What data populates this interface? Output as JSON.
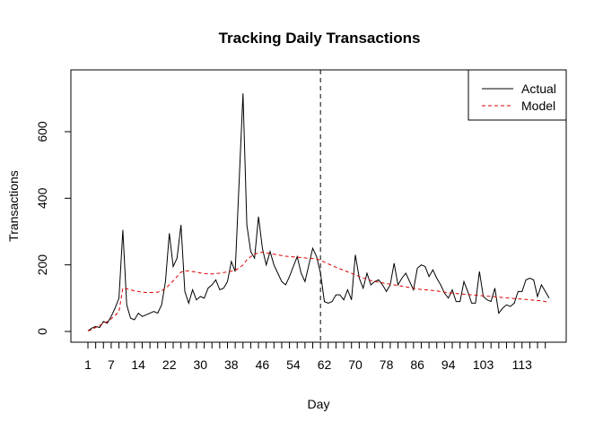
{
  "chart_data": {
    "type": "line",
    "title": "Tracking Daily Transactions",
    "xlabel": "Day",
    "ylabel": "Transactions",
    "xlim": [
      1,
      120
    ],
    "ylim": [
      -15,
      800
    ],
    "x_ticks": [
      1,
      7,
      14,
      22,
      30,
      38,
      46,
      54,
      62,
      70,
      78,
      86,
      94,
      103,
      113
    ],
    "y_ticks": [
      0,
      200,
      400,
      600
    ],
    "vline": 61,
    "legend_position": "top-right",
    "x": [
      1,
      2,
      3,
      4,
      5,
      6,
      7,
      8,
      9,
      10,
      11,
      12,
      13,
      14,
      15,
      16,
      17,
      18,
      19,
      20,
      21,
      22,
      23,
      24,
      25,
      26,
      27,
      28,
      29,
      30,
      31,
      32,
      33,
      34,
      35,
      36,
      37,
      38,
      39,
      40,
      41,
      42,
      43,
      44,
      45,
      46,
      47,
      48,
      49,
      50,
      51,
      52,
      53,
      54,
      55,
      56,
      57,
      58,
      59,
      60,
      61,
      62,
      63,
      64,
      65,
      66,
      67,
      68,
      69,
      70,
      71,
      72,
      73,
      74,
      75,
      76,
      77,
      78,
      79,
      80,
      81,
      82,
      83,
      84,
      85,
      86,
      87,
      88,
      89,
      90,
      91,
      92,
      93,
      94,
      95,
      96,
      97,
      98,
      99,
      100,
      101,
      102,
      103,
      104,
      105,
      106,
      107,
      108,
      109,
      110,
      111,
      112,
      113,
      114,
      115,
      116,
      117,
      118,
      119,
      120
    ],
    "series": [
      {
        "name": "Actual",
        "color": "#000000",
        "dash": "solid",
        "values": [
          2,
          10,
          15,
          12,
          30,
          25,
          45,
          70,
          100,
          305,
          80,
          40,
          35,
          55,
          45,
          50,
          55,
          60,
          55,
          80,
          150,
          295,
          195,
          220,
          320,
          120,
          85,
          125,
          95,
          105,
          100,
          130,
          140,
          155,
          125,
          130,
          150,
          210,
          180,
          450,
          715,
          320,
          240,
          220,
          345,
          250,
          200,
          240,
          200,
          175,
          150,
          140,
          165,
          195,
          225,
          175,
          150,
          200,
          250,
          225,
          175,
          90,
          85,
          90,
          110,
          110,
          95,
          125,
          95,
          230,
          160,
          130,
          175,
          140,
          150,
          155,
          140,
          120,
          140,
          205,
          140,
          160,
          175,
          150,
          125,
          190,
          200,
          195,
          165,
          185,
          160,
          140,
          115,
          100,
          125,
          90,
          90,
          150,
          120,
          85,
          85,
          180,
          105,
          95,
          90,
          130,
          55,
          70,
          80,
          75,
          85,
          120,
          120,
          155,
          160,
          155,
          105,
          140,
          120,
          100
        ]
      },
      {
        "name": "Model",
        "color": "#DD0000",
        "dash": "dashed",
        "values": [
          2,
          5,
          12,
          18,
          25,
          30,
          38,
          48,
          60,
          130,
          128,
          125,
          122,
          120,
          118,
          117,
          117,
          117,
          118,
          122,
          130,
          140,
          152,
          165,
          178,
          182,
          182,
          180,
          178,
          176,
          174,
          173,
          173,
          174,
          175,
          177,
          179,
          181,
          184,
          190,
          200,
          215,
          225,
          232,
          236,
          238,
          236,
          234,
          232,
          230,
          228,
          226,
          225,
          224,
          223,
          222,
          221,
          220,
          219,
          217,
          214,
          208,
          203,
          198,
          193,
          188,
          184,
          179,
          175,
          170,
          165,
          161,
          157,
          153,
          150,
          148,
          146,
          144,
          142,
          140,
          138,
          136,
          134,
          132,
          130,
          128,
          126,
          125,
          124,
          123,
          122,
          120,
          118,
          116,
          115,
          114,
          113,
          112,
          111,
          110,
          109,
          108,
          107,
          106,
          105,
          104,
          103,
          102,
          101,
          100,
          99,
          98,
          97,
          96,
          95,
          94,
          93,
          92,
          90,
          85
        ]
      }
    ]
  }
}
